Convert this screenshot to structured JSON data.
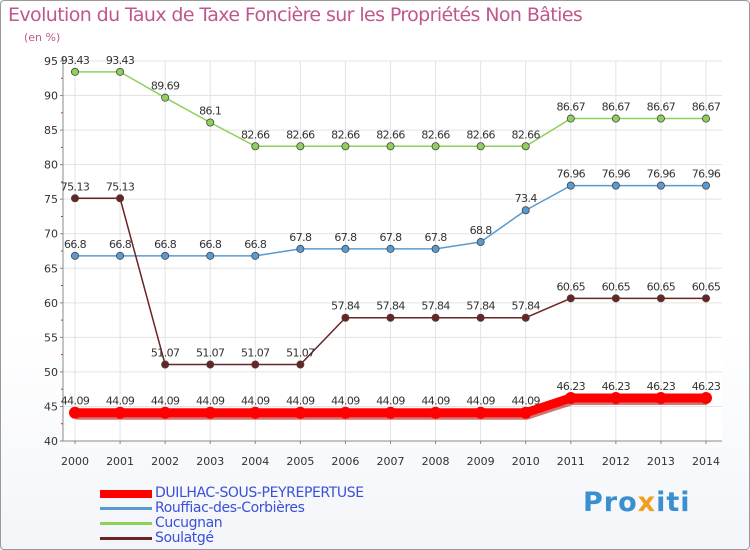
{
  "chart_data": {
    "type": "line",
    "title": "Evolution du Taux de Taxe Foncière sur les Propriétés Non Bâties",
    "ylabel": "(en %)",
    "xlabel": "",
    "ylim": [
      40,
      95
    ],
    "yticks": [
      40,
      45,
      50,
      55,
      60,
      65,
      70,
      75,
      80,
      85,
      90,
      95
    ],
    "categories": [
      "2000",
      "2001",
      "2002",
      "2003",
      "2004",
      "2005",
      "2006",
      "2007",
      "2008",
      "2009",
      "2010",
      "2011",
      "2012",
      "2013",
      "2014"
    ],
    "series": [
      {
        "name": "DUILHAC-SOUS-PEYREPERTUSE",
        "color": "#ff0000",
        "thick": true,
        "values": [
          44.09,
          44.09,
          44.09,
          44.09,
          44.09,
          44.09,
          44.09,
          44.09,
          44.09,
          44.09,
          44.09,
          46.23,
          46.23,
          46.23,
          46.23
        ],
        "labels": [
          "44.09",
          "44.09",
          "44.09",
          "44.09",
          "44.09",
          "44.09",
          "44.09",
          "44.09",
          "44.09",
          "44.09",
          "44.09",
          "46.23",
          "46.23",
          "46.23",
          "46.23"
        ]
      },
      {
        "name": "Rouffiac-des-Corbières",
        "color": "#5a9ad0",
        "thick": false,
        "values": [
          66.8,
          66.8,
          66.8,
          66.8,
          66.8,
          67.8,
          67.8,
          67.8,
          67.8,
          68.8,
          73.4,
          76.96,
          76.96,
          76.96,
          76.96
        ],
        "labels": [
          "66.8",
          "66.8",
          "66.8",
          "66.8",
          "66.8",
          "67.8",
          "67.8",
          "67.8",
          "67.8",
          "68.8",
          "73.4",
          "76.96",
          "76.96",
          "76.96",
          "76.96"
        ]
      },
      {
        "name": "Cucugnan",
        "color": "#8ed05a",
        "thick": false,
        "values": [
          93.43,
          93.43,
          89.69,
          86.1,
          82.66,
          82.66,
          82.66,
          82.66,
          82.66,
          82.66,
          82.66,
          86.67,
          86.67,
          86.67,
          86.67
        ],
        "labels": [
          "93.43",
          "93.43",
          "89.69",
          "86.1",
          "82.66",
          "82.66",
          "82.66",
          "82.66",
          "82.66",
          "82.66",
          "82.66",
          "86.67",
          "86.67",
          "86.67",
          "86.67"
        ]
      },
      {
        "name": "Soulatgé",
        "color": "#6b2323",
        "thick": false,
        "values": [
          75.13,
          75.13,
          51.07,
          51.07,
          51.07,
          51.07,
          57.84,
          57.84,
          57.84,
          57.84,
          57.84,
          60.65,
          60.65,
          60.65,
          60.65
        ],
        "labels": [
          "75.13",
          "75.13",
          "51.07",
          "51.07",
          "51.07",
          "51.07",
          "57.84",
          "57.84",
          "57.84",
          "57.84",
          "57.84",
          "60.65",
          "60.65",
          "60.65",
          "60.65"
        ]
      }
    ]
  },
  "logo": {
    "parts": [
      "Pro",
      "x",
      "iti"
    ],
    "color": "#3a8fd0",
    "accent": "#f0a020"
  }
}
